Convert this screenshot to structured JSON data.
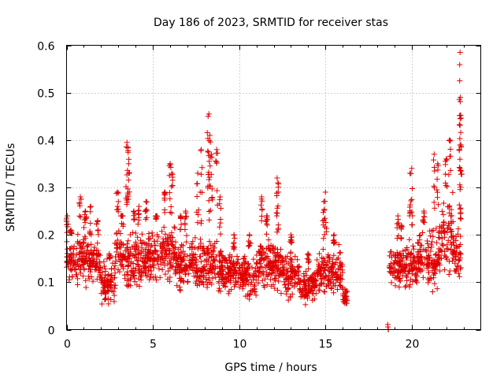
{
  "chart_data": {
    "type": "scatter",
    "title": "Day 186 of 2023, SRMTID for receiver stas",
    "xlabel": "GPS time / hours",
    "ylabel": "SRMTID / TECUs",
    "xlim": [
      0,
      24
    ],
    "ylim": [
      0,
      0.6
    ],
    "xticks": [
      0,
      5,
      10,
      15,
      20
    ],
    "xtick_labels": [
      "0",
      "5",
      "10",
      "15",
      "20"
    ],
    "yticks": [
      0,
      0.1,
      0.2,
      0.3,
      0.4,
      0.5,
      0.6
    ],
    "ytick_labels": [
      "0",
      "0.1",
      "0.2",
      "0.3",
      "0.4",
      "0.5",
      "0.6"
    ],
    "grid": true,
    "marker": "+",
    "series": [
      {
        "name": "SRMTID",
        "color": "#e00000",
        "segments": [
          {
            "x_range": [
              0.0,
              0.5
            ],
            "base": [
              0.09,
              0.2
            ],
            "peaks": [
              [
                0.05,
                0.24
              ],
              [
                0.25,
                0.21
              ]
            ]
          },
          {
            "x_range": [
              0.5,
              1.2
            ],
            "base": [
              0.07,
              0.23
            ],
            "peaks": [
              [
                0.8,
                0.28
              ],
              [
                1.1,
                0.25
              ]
            ]
          },
          {
            "x_range": [
              1.2,
              2.0
            ],
            "base": [
              0.09,
              0.2
            ],
            "peaks": [
              [
                1.4,
                0.26
              ],
              [
                1.8,
                0.23
              ]
            ]
          },
          {
            "x_range": [
              2.0,
              2.8
            ],
            "base": [
              0.04,
              0.16
            ],
            "peaks": [
              [
                2.5,
                0.15
              ]
            ]
          },
          {
            "x_range": [
              2.8,
              3.3
            ],
            "base": [
              0.08,
              0.24
            ],
            "peaks": [
              [
                2.95,
                0.29
              ],
              [
                3.2,
                0.24
              ]
            ]
          },
          {
            "x_range": [
              3.3,
              3.7
            ],
            "base": [
              0.04,
              0.25
            ],
            "peaks": [
              [
                3.5,
                0.395
              ],
              [
                3.55,
                0.385
              ],
              [
                3.6,
                0.35
              ]
            ]
          },
          {
            "x_range": [
              3.7,
              4.5
            ],
            "base": [
              0.07,
              0.22
            ],
            "peaks": [
              [
                3.9,
                0.25
              ],
              [
                4.2,
                0.26
              ]
            ]
          },
          {
            "x_range": [
              4.5,
              5.5
            ],
            "base": [
              0.08,
              0.23
            ],
            "peaks": [
              [
                4.6,
                0.27
              ],
              [
                5.2,
                0.24
              ]
            ]
          },
          {
            "x_range": [
              5.5,
              6.3
            ],
            "base": [
              0.09,
              0.24
            ],
            "peaks": [
              [
                5.7,
                0.29
              ],
              [
                6.0,
                0.35
              ],
              [
                6.1,
                0.33
              ]
            ]
          },
          {
            "x_range": [
              6.3,
              7.3
            ],
            "base": [
              0.07,
              0.21
            ],
            "peaks": [
              [
                6.6,
                0.24
              ],
              [
                6.9,
                0.25
              ]
            ]
          },
          {
            "x_range": [
              7.3,
              8.0
            ],
            "base": [
              0.06,
              0.22
            ],
            "peaks": [
              [
                7.6,
                0.33
              ],
              [
                7.8,
                0.38
              ]
            ]
          },
          {
            "x_range": [
              8.0,
              8.6
            ],
            "base": [
              0.06,
              0.22
            ],
            "peaks": [
              [
                8.2,
                0.45
              ],
              [
                8.25,
                0.455
              ],
              [
                8.3,
                0.41
              ],
              [
                8.4,
                0.37
              ]
            ]
          },
          {
            "x_range": [
              8.6,
              9.2
            ],
            "base": [
              0.05,
              0.2
            ],
            "peaks": [
              [
                8.7,
                0.38
              ],
              [
                8.9,
                0.28
              ]
            ]
          },
          {
            "x_range": [
              9.2,
              10.2
            ],
            "base": [
              0.07,
              0.17
            ],
            "peaks": [
              [
                9.7,
                0.2
              ]
            ]
          },
          {
            "x_range": [
              10.2,
              11.0
            ],
            "base": [
              0.05,
              0.17
            ],
            "peaks": [
              [
                10.6,
                0.2
              ]
            ]
          },
          {
            "x_range": [
              11.0,
              12.0
            ],
            "base": [
              0.06,
              0.22
            ],
            "peaks": [
              [
                11.3,
                0.28
              ],
              [
                11.6,
                0.24
              ]
            ]
          },
          {
            "x_range": [
              12.0,
              12.5
            ],
            "base": [
              0.07,
              0.2
            ],
            "peaks": [
              [
                12.2,
                0.32
              ],
              [
                12.25,
                0.31
              ]
            ]
          },
          {
            "x_range": [
              12.5,
              13.5
            ],
            "base": [
              0.05,
              0.18
            ],
            "peaks": [
              [
                13.0,
                0.2
              ]
            ]
          },
          {
            "x_range": [
              13.5,
              14.5
            ],
            "base": [
              0.05,
              0.14
            ],
            "peaks": [
              [
                14.0,
                0.16
              ]
            ]
          },
          {
            "x_range": [
              14.5,
              15.2
            ],
            "base": [
              0.06,
              0.18
            ],
            "peaks": [
              [
                14.9,
                0.27
              ],
              [
                15.0,
                0.29
              ]
            ]
          },
          {
            "x_range": [
              15.2,
              16.0
            ],
            "base": [
              0.06,
              0.18
            ],
            "peaks": [
              [
                15.5,
                0.2
              ]
            ]
          },
          {
            "x_range": [
              16.0,
              16.3
            ],
            "base": [
              0.05,
              0.09
            ],
            "peaks": []
          },
          {
            "x_range": [
              18.6,
              18.65
            ],
            "base": [
              0.0,
              0.004
            ],
            "peaks": []
          },
          {
            "x_range": [
              18.7,
              19.5
            ],
            "base": [
              0.08,
              0.19
            ],
            "peaks": [
              [
                19.2,
                0.24
              ],
              [
                19.4,
                0.22
              ]
            ]
          },
          {
            "x_range": [
              19.5,
              20.3
            ],
            "base": [
              0.07,
              0.2
            ],
            "peaks": [
              [
                19.9,
                0.33
              ],
              [
                20.0,
                0.34
              ]
            ]
          },
          {
            "x_range": [
              20.3,
              21.0
            ],
            "base": [
              0.08,
              0.22
            ],
            "peaks": [
              [
                20.7,
                0.25
              ]
            ]
          },
          {
            "x_range": [
              21.0,
              21.7
            ],
            "base": [
              0.05,
              0.25
            ],
            "peaks": [
              [
                21.3,
                0.37
              ],
              [
                21.5,
                0.35
              ]
            ]
          },
          {
            "x_range": [
              21.7,
              22.4
            ],
            "base": [
              0.1,
              0.3
            ],
            "peaks": [
              [
                22.0,
                0.36
              ],
              [
                22.2,
                0.4
              ]
            ]
          },
          {
            "x_range": [
              22.4,
              22.85
            ],
            "base": [
              0.09,
              0.23
            ],
            "peaks": [
              [
                22.8,
                0.585
              ],
              [
                22.78,
                0.525
              ],
              [
                22.82,
                0.49
              ],
              [
                22.8,
                0.445
              ],
              [
                22.85,
                0.39
              ]
            ]
          }
        ]
      }
    ]
  }
}
